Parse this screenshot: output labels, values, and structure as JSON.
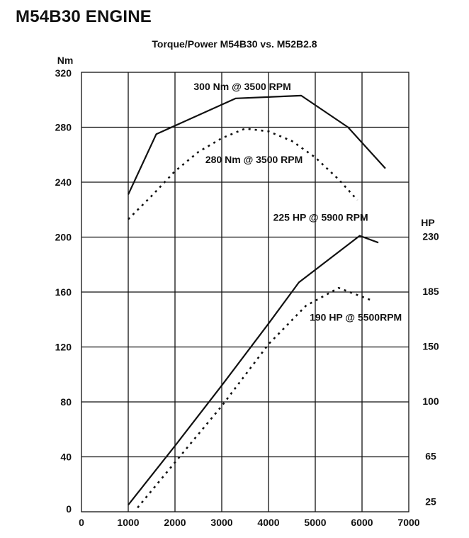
{
  "document": {
    "title": "M54B30 ENGINE"
  },
  "colors": {
    "line": "#111111",
    "grid": "#111111",
    "background": "#ffffff"
  },
  "chart_data": {
    "type": "line",
    "title": "Torque/Power M54B30 vs. M52B2.8",
    "xlabel": "",
    "ylabel": "Nm",
    "y2label": "HP",
    "xlim": [
      0,
      7000
    ],
    "ylim": [
      0,
      320
    ],
    "grid": true,
    "x_ticks": [
      "0",
      "1000",
      "2000",
      "3000",
      "4000",
      "5000",
      "6000",
      "7000"
    ],
    "x_tick_values": [
      0,
      1000,
      2000,
      3000,
      4000,
      5000,
      6000,
      7000
    ],
    "y_ticks": [
      "0",
      "40",
      "80",
      "120",
      "160",
      "200",
      "240",
      "280",
      "320"
    ],
    "y_tick_values": [
      0,
      40,
      80,
      120,
      160,
      200,
      240,
      280,
      320
    ],
    "y2_ticks": [
      "25",
      "65",
      "100",
      "150",
      "185",
      "230"
    ],
    "y2_tick_at_y": [
      7,
      40,
      80,
      120,
      160,
      200
    ],
    "series": [
      {
        "style": "solid",
        "axis": "left",
        "x": [
          1000,
          1600,
          3300,
          4700,
          5700,
          6500
        ],
        "y": [
          231,
          275,
          301,
          303,
          280,
          250
        ]
      },
      {
        "style": "dotted",
        "axis": "left",
        "x": [
          1000,
          1500,
          2000,
          2500,
          3000,
          3500,
          4000,
          4500,
          5000,
          5500,
          5900
        ],
        "y": [
          213,
          230,
          248,
          262,
          272,
          279,
          277,
          270,
          258,
          242,
          227
        ]
      },
      {
        "style": "solid",
        "axis": "left",
        "x": [
          1000,
          2000,
          3000,
          4000,
          4650,
          5950,
          6350
        ],
        "y": [
          5,
          48,
          92,
          137,
          167,
          201,
          196
        ]
      },
      {
        "style": "dotted",
        "axis": "left",
        "x": [
          1200,
          2000,
          3000,
          4000,
          4800,
          5500,
          6200
        ],
        "y": [
          3,
          36,
          77,
          122,
          150,
          163,
          154
        ]
      }
    ],
    "annotations": [
      {
        "text": "300 Nm @ 3500 RPM",
        "x": 2400,
        "y": 307
      },
      {
        "text": "280 Nm @ 3500 RPM",
        "x": 2650,
        "y": 254
      },
      {
        "text": "225  HP @ 5900 RPM",
        "x": 4100,
        "y": 212
      },
      {
        "text": "190 HP @ 5500RPM",
        "x": 4880,
        "y": 139
      }
    ]
  }
}
